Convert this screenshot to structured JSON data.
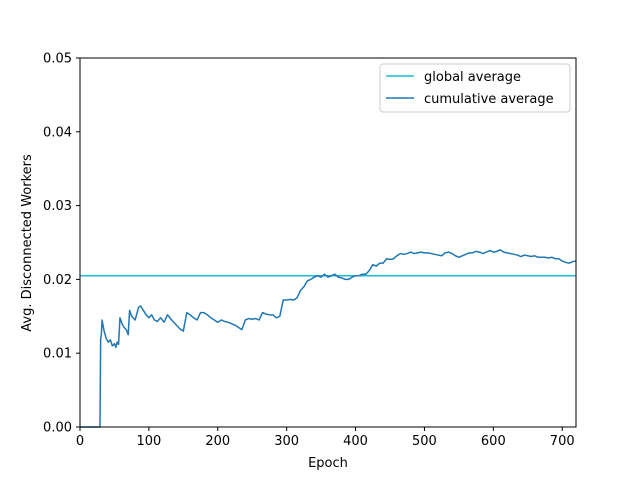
{
  "chart_data": {
    "type": "line",
    "xlabel": "Epoch",
    "ylabel": "Avg. Disconnected Workers",
    "xlim": [
      0,
      720
    ],
    "ylim": [
      0,
      0.05
    ],
    "x_ticks": [
      "0",
      "100",
      "200",
      "300",
      "400",
      "500",
      "600",
      "700"
    ],
    "y_ticks": [
      "0.00",
      "0.01",
      "0.02",
      "0.03",
      "0.04",
      "0.05"
    ],
    "grid": false,
    "legend_placement": "top-right",
    "series": [
      {
        "name": "global average",
        "color": "#17becf",
        "x": [
          0,
          720
        ],
        "y": [
          0.0205,
          0.0205
        ]
      },
      {
        "name": "cumulative average",
        "color": "#1f77b4",
        "x": [
          0,
          29,
          30,
          31,
          32,
          33,
          35,
          38,
          41,
          44,
          47,
          50,
          52,
          54,
          56,
          58,
          61,
          64,
          67,
          70,
          72,
          75,
          80,
          85,
          88,
          92,
          96,
          100,
          104,
          108,
          112,
          117,
          122,
          127,
          133,
          140,
          145,
          150,
          155,
          160,
          165,
          170,
          175,
          180,
          185,
          190,
          195,
          200,
          205,
          210,
          215,
          220,
          225,
          230,
          235,
          240,
          245,
          250,
          255,
          260,
          265,
          270,
          275,
          280,
          285,
          290,
          295,
          300,
          305,
          310,
          315,
          320,
          325,
          330,
          335,
          340,
          345,
          350,
          355,
          360,
          365,
          370,
          375,
          380,
          385,
          390,
          395,
          400,
          405,
          410,
          415,
          420,
          425,
          430,
          435,
          440,
          445,
          450,
          455,
          460,
          465,
          470,
          475,
          480,
          485,
          490,
          495,
          500,
          505,
          510,
          515,
          520,
          525,
          530,
          535,
          540,
          545,
          550,
          555,
          560,
          565,
          570,
          575,
          580,
          585,
          590,
          595,
          600,
          605,
          610,
          615,
          620,
          625,
          630,
          635,
          640,
          645,
          650,
          655,
          660,
          665,
          670,
          675,
          680,
          685,
          690,
          695,
          700,
          705,
          710,
          715,
          720
        ],
        "y": [
          0.0,
          0.0,
          0.012,
          0.0125,
          0.0145,
          0.014,
          0.013,
          0.012,
          0.0115,
          0.0118,
          0.011,
          0.0113,
          0.0108,
          0.0115,
          0.0112,
          0.0148,
          0.014,
          0.0135,
          0.0132,
          0.0125,
          0.0158,
          0.015,
          0.0145,
          0.0162,
          0.0164,
          0.0158,
          0.0152,
          0.0148,
          0.0152,
          0.0145,
          0.0143,
          0.0148,
          0.0142,
          0.0152,
          0.0145,
          0.0138,
          0.0133,
          0.013,
          0.0155,
          0.0152,
          0.0148,
          0.0145,
          0.0155,
          0.0155,
          0.0152,
          0.0148,
          0.0145,
          0.0142,
          0.0145,
          0.0143,
          0.0142,
          0.014,
          0.0138,
          0.0135,
          0.0132,
          0.0145,
          0.0147,
          0.0146,
          0.0147,
          0.0145,
          0.0155,
          0.0153,
          0.0152,
          0.0152,
          0.0148,
          0.015,
          0.0172,
          0.0172,
          0.0173,
          0.0172,
          0.0175,
          0.0185,
          0.019,
          0.0198,
          0.02,
          0.0203,
          0.0205,
          0.0203,
          0.0207,
          0.0203,
          0.0205,
          0.0207,
          0.0203,
          0.0202,
          0.02,
          0.02,
          0.0203,
          0.0205,
          0.0205,
          0.0207,
          0.0207,
          0.0212,
          0.022,
          0.0218,
          0.0222,
          0.0222,
          0.0228,
          0.0227,
          0.0228,
          0.0232,
          0.0235,
          0.0234,
          0.0235,
          0.0237,
          0.0235,
          0.0236,
          0.0237,
          0.0236,
          0.0236,
          0.0235,
          0.0234,
          0.0233,
          0.0232,
          0.0236,
          0.0237,
          0.0235,
          0.0232,
          0.023,
          0.0232,
          0.0234,
          0.0236,
          0.0236,
          0.0238,
          0.0237,
          0.0235,
          0.0237,
          0.0239,
          0.0237,
          0.0238,
          0.024,
          0.0237,
          0.0236,
          0.0235,
          0.0234,
          0.0233,
          0.0231,
          0.0233,
          0.0232,
          0.0231,
          0.0232,
          0.023,
          0.023,
          0.023,
          0.0229,
          0.023,
          0.0228,
          0.0228,
          0.0225,
          0.0223,
          0.0222,
          0.0224,
          0.0225
        ]
      }
    ]
  }
}
